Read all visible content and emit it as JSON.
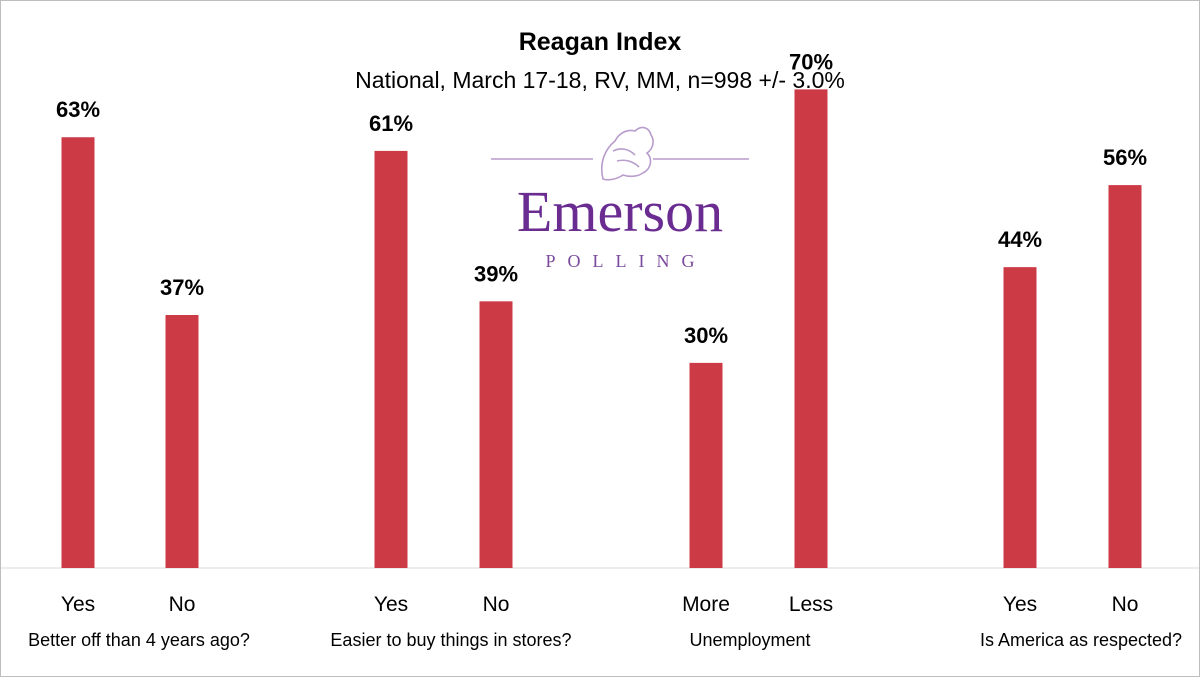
{
  "logo": {
    "name": "Emerson",
    "sub": "POLLING",
    "color": "#6a2c91",
    "sub_color": "#7a4a9c"
  },
  "chart_data": {
    "type": "bar",
    "title": "Reagan Index",
    "subtitle": "National, March 17-18, RV, MM, n=998 +/- 3.0%",
    "unit": "%",
    "ylim": [
      0,
      80
    ],
    "bar_color": "#cc3a45",
    "grid": false,
    "legend": "none",
    "groups": [
      {
        "label": "Better off than 4 years ago?",
        "categories": [
          "Yes",
          "No"
        ],
        "values": [
          63,
          37
        ]
      },
      {
        "label": "Easier to buy things in stores?",
        "categories": [
          "Yes",
          "No"
        ],
        "values": [
          61,
          39
        ]
      },
      {
        "label": "Unemployment",
        "categories": [
          "More",
          "Less"
        ],
        "values": [
          30,
          70
        ]
      },
      {
        "label": "Is America as respected?",
        "categories": [
          "Yes",
          "No"
        ],
        "values": [
          44,
          56
        ]
      }
    ]
  }
}
